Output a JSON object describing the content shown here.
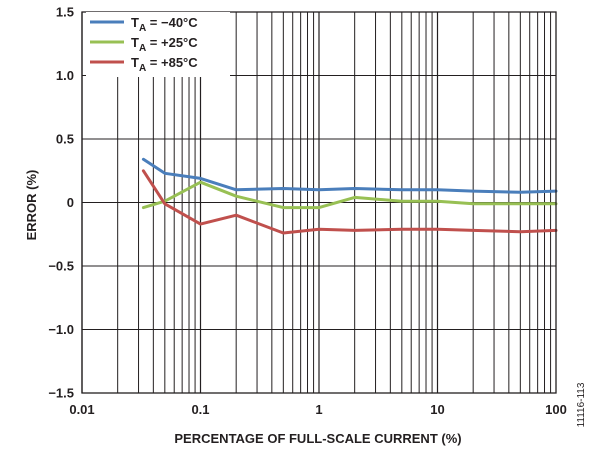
{
  "chart_data": {
    "type": "line",
    "title": "",
    "xlabel": "PERCENTAGE OF FULL-SCALE CURRENT (%)",
    "ylabel": "ERROR (%)",
    "xscale": "log",
    "xlim": [
      0.01,
      100
    ],
    "ylim": [
      -1.5,
      1.5
    ],
    "grid": true,
    "legend_position": "top-left",
    "x_tick_labels": [
      "0.01",
      "0.1",
      "1",
      "10",
      "100"
    ],
    "y_tick_labels": [
      "1.5",
      "1.0",
      "0.5",
      "0",
      "−0.5",
      "−1.0",
      "−1.5"
    ],
    "y_tick_values": [
      1.5,
      1.0,
      0.5,
      0,
      -0.5,
      -1.0,
      -1.5
    ],
    "x": [
      0.033,
      0.05,
      0.1,
      0.2,
      0.5,
      1,
      2,
      5,
      10,
      20,
      50,
      100
    ],
    "series": [
      {
        "name": "T",
        "name_sub": "A",
        "name_suffix": " = −40°C",
        "color": "#4a7ebb",
        "values": [
          0.34,
          0.23,
          0.19,
          0.1,
          0.11,
          0.1,
          0.11,
          0.1,
          0.1,
          0.09,
          0.08,
          0.09
        ]
      },
      {
        "name": "T",
        "name_sub": "A",
        "name_suffix": " = +25°C",
        "color": "#98c054",
        "values": [
          -0.04,
          0.01,
          0.16,
          0.05,
          -0.04,
          -0.04,
          0.04,
          0.01,
          0.01,
          -0.01,
          -0.01,
          -0.01
        ]
      },
      {
        "name": "T",
        "name_sub": "A",
        "name_suffix": " = +85°C",
        "color": "#c0504d",
        "values": [
          0.25,
          -0.01,
          -0.17,
          -0.1,
          -0.24,
          -0.21,
          -0.22,
          -0.21,
          -0.21,
          -0.22,
          -0.23,
          -0.22
        ]
      }
    ]
  },
  "figure_id": "11116-113"
}
